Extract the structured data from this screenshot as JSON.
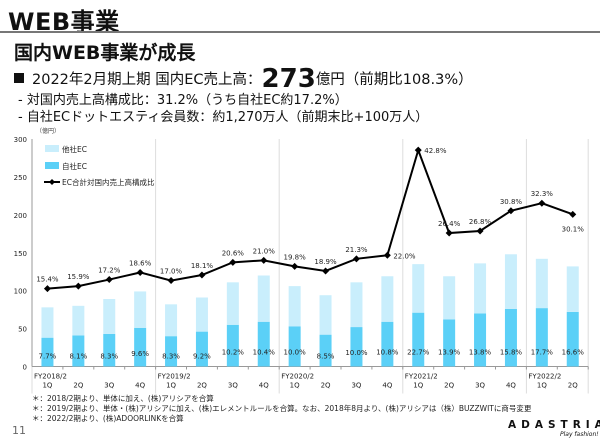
{
  "header": {
    "title": "WEB事業"
  },
  "subtitle": "国内WEB事業が成長",
  "bullet": {
    "prefix": "2022年2月期上期 国内EC売上高：",
    "value": "273",
    "suffix": "億円（前期比108.3%）"
  },
  "sub_points": [
    "- 対国内売上高構成比：31.2%（うち自社EC約17.2%）",
    "- 自社ECドットエスティ会員数：約1,270万人（前期末比+100万人）"
  ],
  "footnotes": [
    "＊：2018/2期より、単体に加え、(株)アリシアを合算",
    "＊：2019/2期より、単体・(株)アリシアに加え、(株)エレメントルールを合算。なお、2018年8月より、(株)アリシアは（株）BUZZWITに商号変更",
    "＊：2022/2期より、(株)ADOORLINKを合算"
  ],
  "page_number": "11",
  "logo": {
    "name": "ADASTRIA",
    "tagline": "Play fashion!"
  },
  "chart_data": {
    "type": "bar",
    "stacked": true,
    "unit_label": "（億円）",
    "ylim": [
      0,
      300
    ],
    "yticks": [
      "0",
      "50",
      "100",
      "150",
      "200",
      "250",
      "300"
    ],
    "secondary_ylim_percent": [
      0,
      45
    ],
    "fiscal_years": [
      "FY2018/2",
      "FY2019/2",
      "FY2020/2",
      "FY2021/2",
      "FY2022/2"
    ],
    "categories": [
      "1Q",
      "2Q",
      "3Q",
      "4Q",
      "1Q",
      "2Q",
      "3Q",
      "4Q",
      "1Q",
      "2Q",
      "3Q",
      "4Q",
      "1Q",
      "2Q",
      "3Q",
      "4Q",
      "1Q",
      "2Q"
    ],
    "legend_position": "top-left",
    "series": [
      {
        "name": "他社EC",
        "color": "#c9eefc",
        "values": [
          40,
          39,
          46,
          48,
          42,
          45,
          56,
          61,
          53,
          52,
          59,
          60,
          64,
          57,
          66,
          72,
          65,
          60
        ]
      },
      {
        "name": "自社EC",
        "color": "#5bd0f7",
        "values": [
          38,
          41,
          43,
          51,
          40,
          46,
          55,
          59,
          53,
          42,
          52,
          59,
          71,
          62,
          70,
          76,
          77,
          72
        ],
        "labels": [
          "7.7%",
          "8.1%",
          "8.3%",
          "9.6%",
          "8.3%",
          "9.2%",
          "10.2%",
          "10.4%",
          "10.0%",
          "8.5%",
          "10.0%",
          "10.8%",
          "22.7%",
          "13.9%",
          "13.8%",
          "15.8%",
          "17.7%",
          "16.6%"
        ]
      },
      {
        "name": "EC合計対国内売上高構成比",
        "type": "line",
        "color": "#000000",
        "values": [
          15.4,
          15.9,
          17.2,
          18.6,
          17.0,
          18.1,
          20.6,
          21.0,
          19.8,
          18.9,
          21.3,
          22.0,
          42.8,
          26.4,
          26.8,
          30.8,
          32.3,
          30.1
        ],
        "labels": [
          "15.4%",
          "15.9%",
          "17.2%",
          "18.6%",
          "17.0%",
          "18.1%",
          "20.6%",
          "21.0%",
          "19.8%",
          "18.9%",
          "21.3%",
          "22.0%",
          "42.8%",
          "26.4%",
          "26.8%",
          "30.8%",
          "32.3%",
          "30.1%"
        ]
      }
    ]
  }
}
